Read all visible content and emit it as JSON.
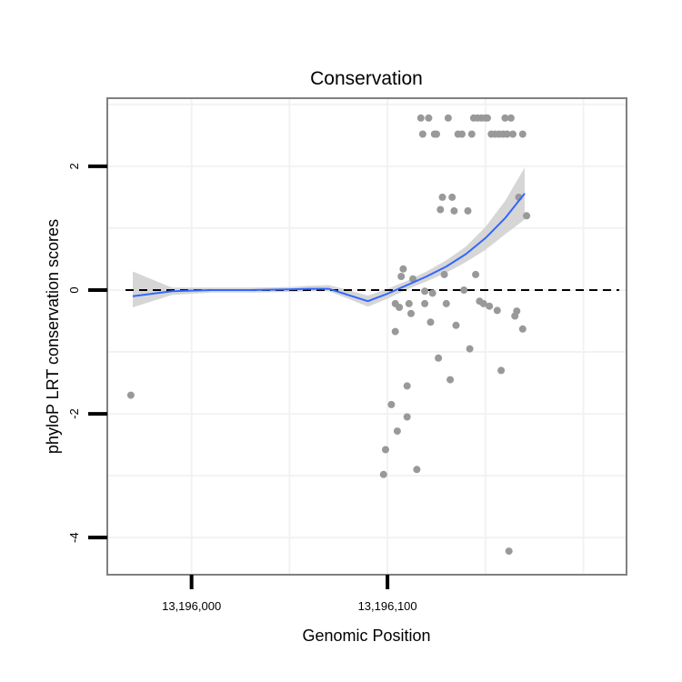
{
  "chart_data": {
    "type": "scatter",
    "title": "Conservation",
    "xlabel": "Genomic Position",
    "ylabel": "phyloP LRT conservation scores",
    "xlim": [
      13195957,
      13196222
    ],
    "ylim": [
      -4.6,
      3.1
    ],
    "x_ticks": [
      {
        "value": 13196000,
        "label": "13,196,000"
      },
      {
        "value": 13196100,
        "label": "13,196,100"
      }
    ],
    "y_ticks": [
      {
        "value": -4,
        "label": "-4"
      },
      {
        "value": -2,
        "label": "-2"
      },
      {
        "value": 0,
        "label": "0"
      },
      {
        "value": 2,
        "label": "2"
      }
    ],
    "grid": true,
    "reference_line": {
      "y": 0,
      "style": "dashed"
    },
    "points": [
      {
        "x": 13195969,
        "y": -1.7
      },
      {
        "x": 13196098,
        "y": -2.98
      },
      {
        "x": 13196099,
        "y": -2.58
      },
      {
        "x": 13196102,
        "y": -1.85
      },
      {
        "x": 13196104,
        "y": -0.22
      },
      {
        "x": 13196104,
        "y": -0.67
      },
      {
        "x": 13196105,
        "y": -2.28
      },
      {
        "x": 13196106,
        "y": -0.28
      },
      {
        "x": 13196107,
        "y": 0.22
      },
      {
        "x": 13196108,
        "y": 0.34
      },
      {
        "x": 13196110,
        "y": -1.55
      },
      {
        "x": 13196110,
        "y": -2.05
      },
      {
        "x": 13196111,
        "y": -0.22
      },
      {
        "x": 13196112,
        "y": -0.38
      },
      {
        "x": 13196113,
        "y": 0.18
      },
      {
        "x": 13196115,
        "y": -2.9
      },
      {
        "x": 13196117,
        "y": 2.78
      },
      {
        "x": 13196118,
        "y": 2.52
      },
      {
        "x": 13196119,
        "y": -0.02
      },
      {
        "x": 13196119,
        "y": -0.22
      },
      {
        "x": 13196121,
        "y": 2.78
      },
      {
        "x": 13196122,
        "y": -0.52
      },
      {
        "x": 13196123,
        "y": -0.05
      },
      {
        "x": 13196124,
        "y": 2.52
      },
      {
        "x": 13196125,
        "y": 2.52
      },
      {
        "x": 13196126,
        "y": -1.1
      },
      {
        "x": 13196127,
        "y": 1.3
      },
      {
        "x": 13196128,
        "y": 1.5
      },
      {
        "x": 13196129,
        "y": 0.25
      },
      {
        "x": 13196130,
        "y": -0.22
      },
      {
        "x": 13196131,
        "y": 2.78
      },
      {
        "x": 13196132,
        "y": -1.45
      },
      {
        "x": 13196133,
        "y": 1.5
      },
      {
        "x": 13196134,
        "y": 1.28
      },
      {
        "x": 13196135,
        "y": -0.57
      },
      {
        "x": 13196136,
        "y": 2.52
      },
      {
        "x": 13196138,
        "y": 2.52
      },
      {
        "x": 13196139,
        "y": 0.0
      },
      {
        "x": 13196141,
        "y": 1.28
      },
      {
        "x": 13196142,
        "y": -0.95
      },
      {
        "x": 13196143,
        "y": 2.52
      },
      {
        "x": 13196144,
        "y": 2.78
      },
      {
        "x": 13196145,
        "y": 0.25
      },
      {
        "x": 13196146,
        "y": 2.78
      },
      {
        "x": 13196147,
        "y": -0.18
      },
      {
        "x": 13196148,
        "y": 2.78
      },
      {
        "x": 13196149,
        "y": -0.22
      },
      {
        "x": 13196150,
        "y": 2.78
      },
      {
        "x": 13196151,
        "y": 2.78
      },
      {
        "x": 13196152,
        "y": -0.26
      },
      {
        "x": 13196153,
        "y": 2.52
      },
      {
        "x": 13196155,
        "y": 2.52
      },
      {
        "x": 13196156,
        "y": -0.33
      },
      {
        "x": 13196157,
        "y": 2.52
      },
      {
        "x": 13196158,
        "y": -1.3
      },
      {
        "x": 13196159,
        "y": 2.52
      },
      {
        "x": 13196160,
        "y": 2.78
      },
      {
        "x": 13196161,
        "y": 2.52
      },
      {
        "x": 13196162,
        "y": -4.22
      },
      {
        "x": 13196163,
        "y": 2.78
      },
      {
        "x": 13196164,
        "y": 2.52
      },
      {
        "x": 13196165,
        "y": -0.42
      },
      {
        "x": 13196166,
        "y": -0.34
      },
      {
        "x": 13196167,
        "y": 1.5
      },
      {
        "x": 13196169,
        "y": 2.52
      },
      {
        "x": 13196169,
        "y": -0.63
      },
      {
        "x": 13196171,
        "y": 1.2
      }
    ],
    "smooth": {
      "x": [
        13195970,
        13195990,
        13196010,
        13196030,
        13196050,
        13196060,
        13196070,
        13196080,
        13196090,
        13196100,
        13196110,
        13196120,
        13196130,
        13196140,
        13196150,
        13196160,
        13196170
      ],
      "y": [
        -0.1,
        -0.02,
        0.0,
        0.0,
        0.01,
        0.02,
        0.02,
        -0.08,
        -0.18,
        -0.06,
        0.08,
        0.22,
        0.38,
        0.58,
        0.84,
        1.16,
        1.56
      ],
      "lower": [
        -0.28,
        -0.08,
        -0.04,
        -0.04,
        -0.03,
        -0.02,
        -0.02,
        -0.14,
        -0.27,
        -0.14,
        0.01,
        0.14,
        0.28,
        0.45,
        0.65,
        0.9,
        1.14
      ],
      "upper": [
        0.3,
        0.04,
        0.04,
        0.04,
        0.05,
        0.07,
        0.08,
        0.0,
        -0.09,
        0.02,
        0.15,
        0.3,
        0.48,
        0.7,
        1.02,
        1.44,
        1.98
      ]
    },
    "colors": {
      "points": "#999999",
      "smooth_line": "#3366FF",
      "ribbon": "#cfcfcf",
      "reference": "#000000",
      "panel_border": "#808080",
      "grid": "#f2f2f2"
    }
  }
}
